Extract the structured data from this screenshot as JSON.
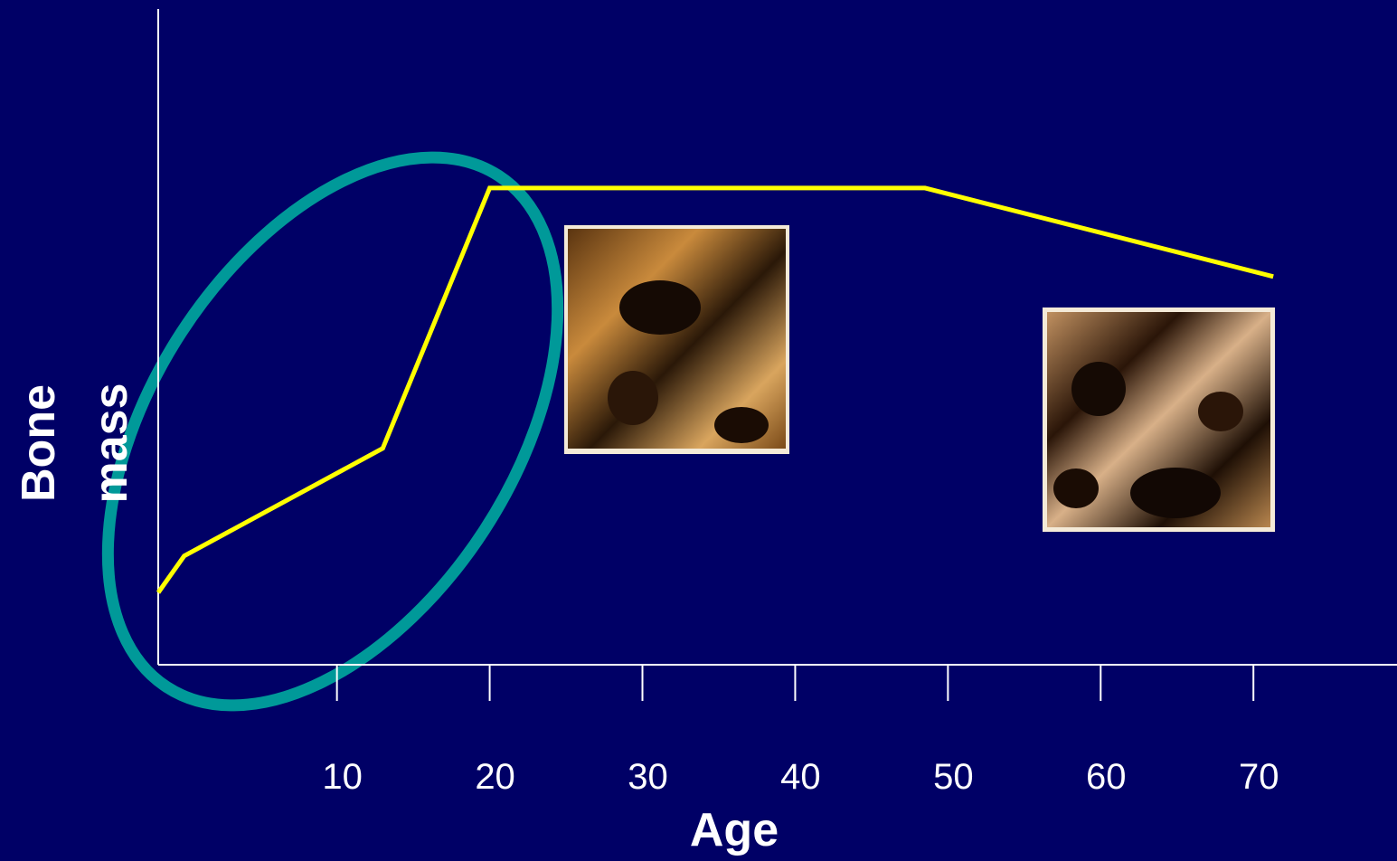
{
  "chart_data": {
    "type": "line",
    "xlabel": "Age",
    "ylabel_lines": [
      "Bone",
      "mass"
    ],
    "x": [
      -1.7,
      0,
      13,
      20,
      48.5,
      71.3
    ],
    "series": [
      {
        "color": "#ffff00",
        "values": [
          11,
          16.6,
          33,
          72.7,
          72.7,
          59.2
        ]
      }
    ],
    "xlim": [
      -1.7,
      79.4
    ],
    "ylim": [
      0,
      100
    ],
    "xticks": [
      10,
      20,
      30,
      40,
      50,
      60,
      70
    ],
    "background": "#000066",
    "axis_color": "#ffffff"
  }
}
